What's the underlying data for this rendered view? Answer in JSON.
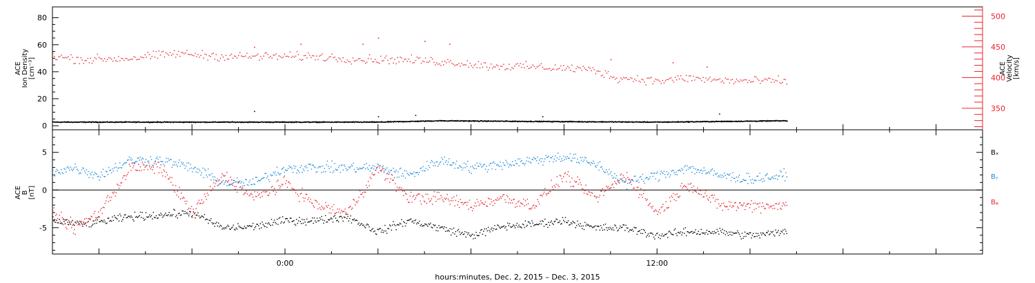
{
  "footer": "hours:minutes, Dec.  2, 2015 – Dec.  3, 2015",
  "colors": {
    "black": "#000000",
    "red": "#e8212b",
    "blue": "#1f8ad6"
  },
  "chart_data": [
    {
      "type": "scatter",
      "panel": "top",
      "left_axis": {
        "label_lines": [
          "ACE",
          "Ion Density",
          "[cm⁻³]"
        ],
        "ylim": [
          -3,
          88
        ],
        "ticks": [
          0,
          20,
          40,
          60,
          80
        ]
      },
      "right_axis": {
        "label_lines": [
          "ACE",
          "Velocity",
          "[km/s]"
        ],
        "ylim": [
          315,
          515
        ],
        "ticks": [
          350,
          400,
          450,
          500
        ]
      },
      "x": {
        "range_hours": [
          -7.5,
          22.5
        ],
        "data_end_hours": 16.2,
        "tick_labels": [
          {
            "hour": 0,
            "label": "0:00"
          },
          {
            "hour": 12,
            "label": "12:00"
          }
        ]
      },
      "series": [
        {
          "axis": "left",
          "color": "black",
          "keyframes": [
            [
              -7.5,
              3
            ],
            [
              -3,
              3
            ],
            [
              0,
              3
            ],
            [
              3,
              3
            ],
            [
              5,
              4
            ],
            [
              8,
              3.5
            ],
            [
              12,
              3
            ],
            [
              16.2,
              4
            ]
          ],
          "noise": 0.6,
          "spikes": [
            [
              -1.0,
              11
            ],
            [
              3.0,
              7
            ],
            [
              4.2,
              8
            ],
            [
              8.3,
              7
            ],
            [
              14.0,
              9
            ]
          ]
        },
        {
          "axis": "right",
          "color": "red",
          "keyframes": [
            [
              -7.5,
              435
            ],
            [
              -6.5,
              430
            ],
            [
              -5,
              432
            ],
            [
              -3.5,
              440
            ],
            [
              -2,
              435
            ],
            [
              -0.5,
              435
            ],
            [
              1,
              435
            ],
            [
              2.5,
              430
            ],
            [
              3.5,
              430
            ],
            [
              4.5,
              428
            ],
            [
              5.5,
              425
            ],
            [
              6.5,
              420
            ],
            [
              8,
              418
            ],
            [
              9.5,
              415
            ],
            [
              10,
              412
            ],
            [
              10.7,
              400
            ],
            [
              11.5,
              398
            ],
            [
              12.0,
              395
            ],
            [
              12.5,
              397
            ],
            [
              13.0,
              400
            ],
            [
              13.5,
              398
            ],
            [
              14.0,
              396
            ],
            [
              15.0,
              395
            ],
            [
              16.2,
              395
            ]
          ],
          "noise": 12,
          "spikes": [
            [
              -1.0,
              450
            ],
            [
              0.5,
              455
            ],
            [
              2.5,
              455
            ],
            [
              3.0,
              465
            ],
            [
              4.5,
              460
            ],
            [
              5.3,
              455
            ],
            [
              10.5,
              430
            ],
            [
              12.5,
              425
            ],
            [
              13.6,
              418
            ]
          ]
        }
      ]
    },
    {
      "type": "scatter",
      "panel": "bottom",
      "left_axis": {
        "label_lines": [
          "ACE",
          "B",
          "[nT]"
        ],
        "ylim": [
          -8.5,
          8
        ],
        "ticks": [
          -5,
          0,
          5
        ]
      },
      "zero_line": true,
      "legend": [
        {
          "name": "Bₓ",
          "color": "black"
        },
        {
          "name": "Bᵧ",
          "color": "blue"
        },
        {
          "name": "Bᵩ",
          "color": "red"
        }
      ],
      "series": [
        {
          "name": "Bₓ",
          "color": "black",
          "keyframes": [
            [
              -7.5,
              -4.0
            ],
            [
              -6.5,
              -4.5
            ],
            [
              -5,
              -3.5
            ],
            [
              -3,
              -3.0
            ],
            [
              -2,
              -5.0
            ],
            [
              -1,
              -4.8
            ],
            [
              0,
              -4.0
            ],
            [
              1,
              -4.0
            ],
            [
              2,
              -3.5
            ],
            [
              3,
              -5.5
            ],
            [
              4,
              -4.0
            ],
            [
              5,
              -5.0
            ],
            [
              6,
              -6.0
            ],
            [
              7,
              -4.8
            ],
            [
              8,
              -4.5
            ],
            [
              9,
              -4.0
            ],
            [
              10,
              -5.0
            ],
            [
              11,
              -5.0
            ],
            [
              12,
              -6.0
            ],
            [
              13,
              -5.5
            ],
            [
              14,
              -5.5
            ],
            [
              15,
              -6.0
            ],
            [
              16.2,
              -5.5
            ]
          ],
          "noise": 0.9
        },
        {
          "name": "Bᵧ",
          "color": "blue",
          "keyframes": [
            [
              -7.5,
              2.5
            ],
            [
              -6.8,
              3.0
            ],
            [
              -6,
              2.0
            ],
            [
              -5,
              4.0
            ],
            [
              -4,
              4.0
            ],
            [
              -3,
              3.0
            ],
            [
              -2,
              1.0
            ],
            [
              -1,
              1.0
            ],
            [
              0,
              3.0
            ],
            [
              1,
              3.0
            ],
            [
              2,
              3.0
            ],
            [
              3,
              3.0
            ],
            [
              4,
              2.0
            ],
            [
              5,
              4.0
            ],
            [
              6,
              3.0
            ],
            [
              7,
              3.5
            ],
            [
              8,
              4.0
            ],
            [
              9,
              4.5
            ],
            [
              10,
              3.5
            ],
            [
              11,
              1.0
            ],
            [
              12,
              2.0
            ],
            [
              13,
              3.0
            ],
            [
              14,
              2.0
            ],
            [
              15,
              1.5
            ],
            [
              16.2,
              2.0
            ]
          ],
          "noise": 1.2
        },
        {
          "name": "Bᵩ",
          "color": "red",
          "keyframes": [
            [
              -7.5,
              -3.0
            ],
            [
              -6.8,
              -5.0
            ],
            [
              -6,
              -3.0
            ],
            [
              -5,
              3.0
            ],
            [
              -4,
              3.0
            ],
            [
              -3,
              -3.0
            ],
            [
              -2,
              2.0
            ],
            [
              -1,
              -1.0
            ],
            [
              0,
              1.0
            ],
            [
              1,
              -2.0
            ],
            [
              2,
              -3.0
            ],
            [
              3,
              3.0
            ],
            [
              4,
              -1.0
            ],
            [
              5,
              -1.0
            ],
            [
              6,
              -2.0
            ],
            [
              7,
              -1.0
            ],
            [
              8,
              -2.0
            ],
            [
              9,
              2.0
            ],
            [
              10,
              -1.0
            ],
            [
              11,
              2.0
            ],
            [
              12,
              -3.0
            ],
            [
              13,
              1.0
            ],
            [
              14,
              -2.0
            ],
            [
              15,
              -2.0
            ],
            [
              16.2,
              -2.0
            ]
          ],
          "noise": 1.4
        }
      ]
    }
  ]
}
